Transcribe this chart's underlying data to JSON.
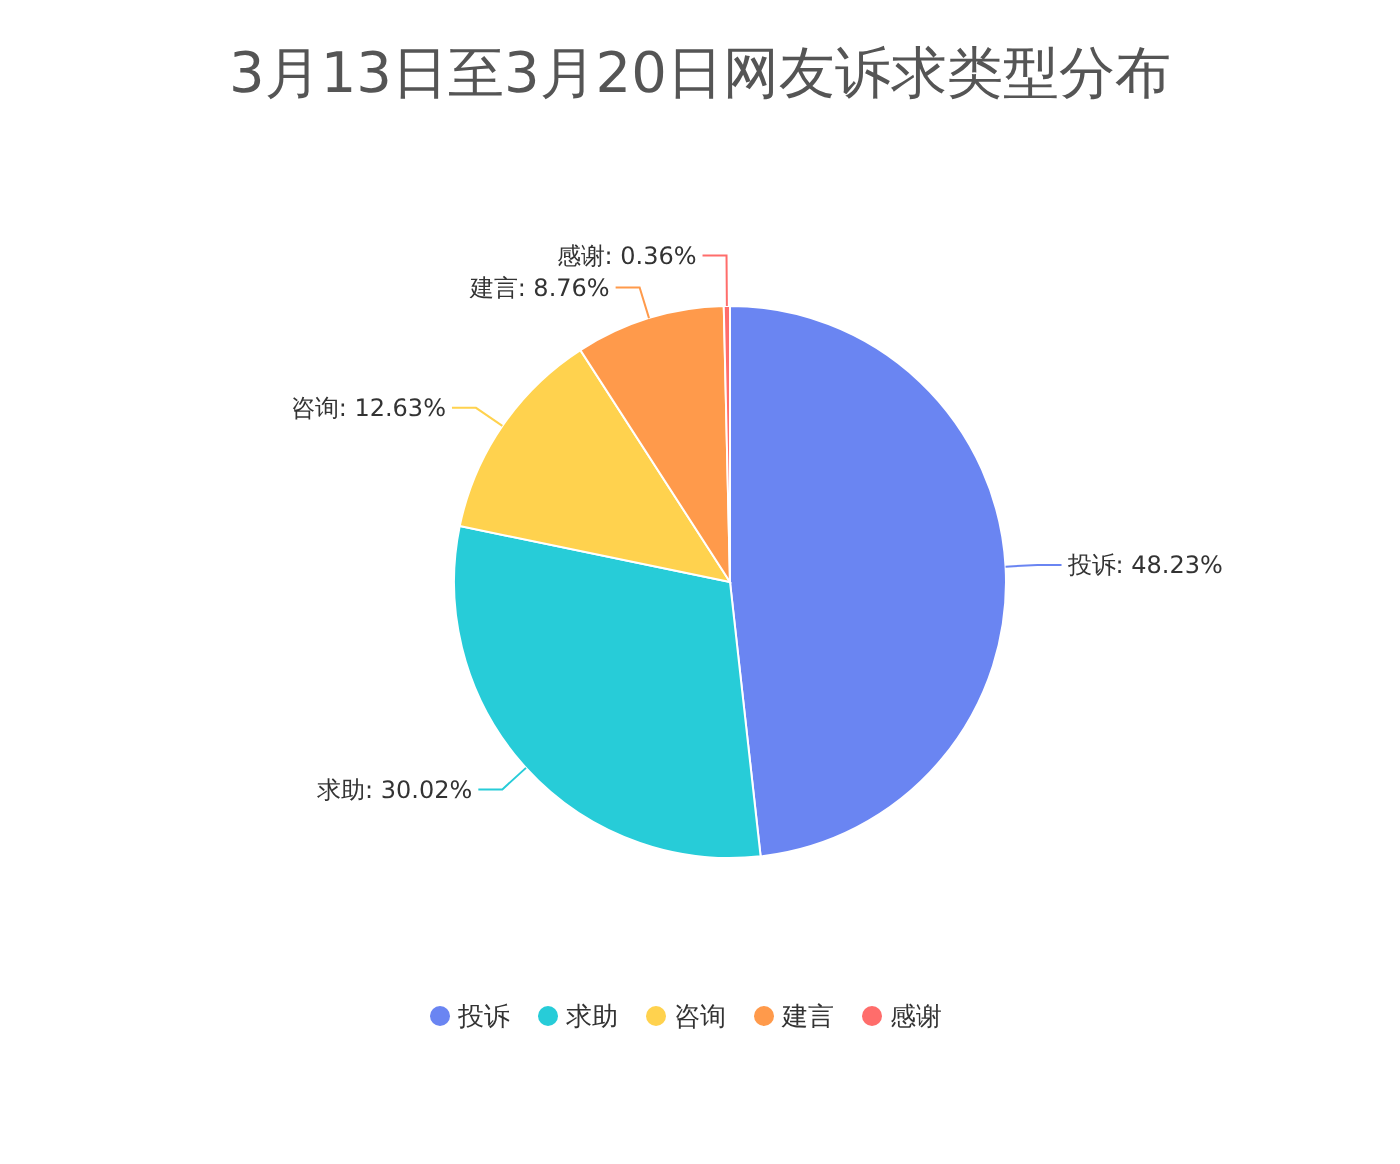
{
  "chart_data": {
    "type": "pie",
    "title": "3月13日至3月20日网友诉求类型分布",
    "categories": [
      "投诉",
      "求助",
      "咨询",
      "建言",
      "感谢"
    ],
    "values": [
      48.23,
      30.02,
      12.63,
      8.76,
      0.36
    ],
    "colors": [
      "#6a85f2",
      "#27ccd8",
      "#ffd24e",
      "#ff9a4b",
      "#ff6d6b"
    ],
    "value_labels": [
      "投诉: 48.23%",
      "求助: 30.02%",
      "咨询: 12.63%",
      "建言: 8.76%",
      "感谢: 0.36%"
    ],
    "legend": "bottom"
  }
}
